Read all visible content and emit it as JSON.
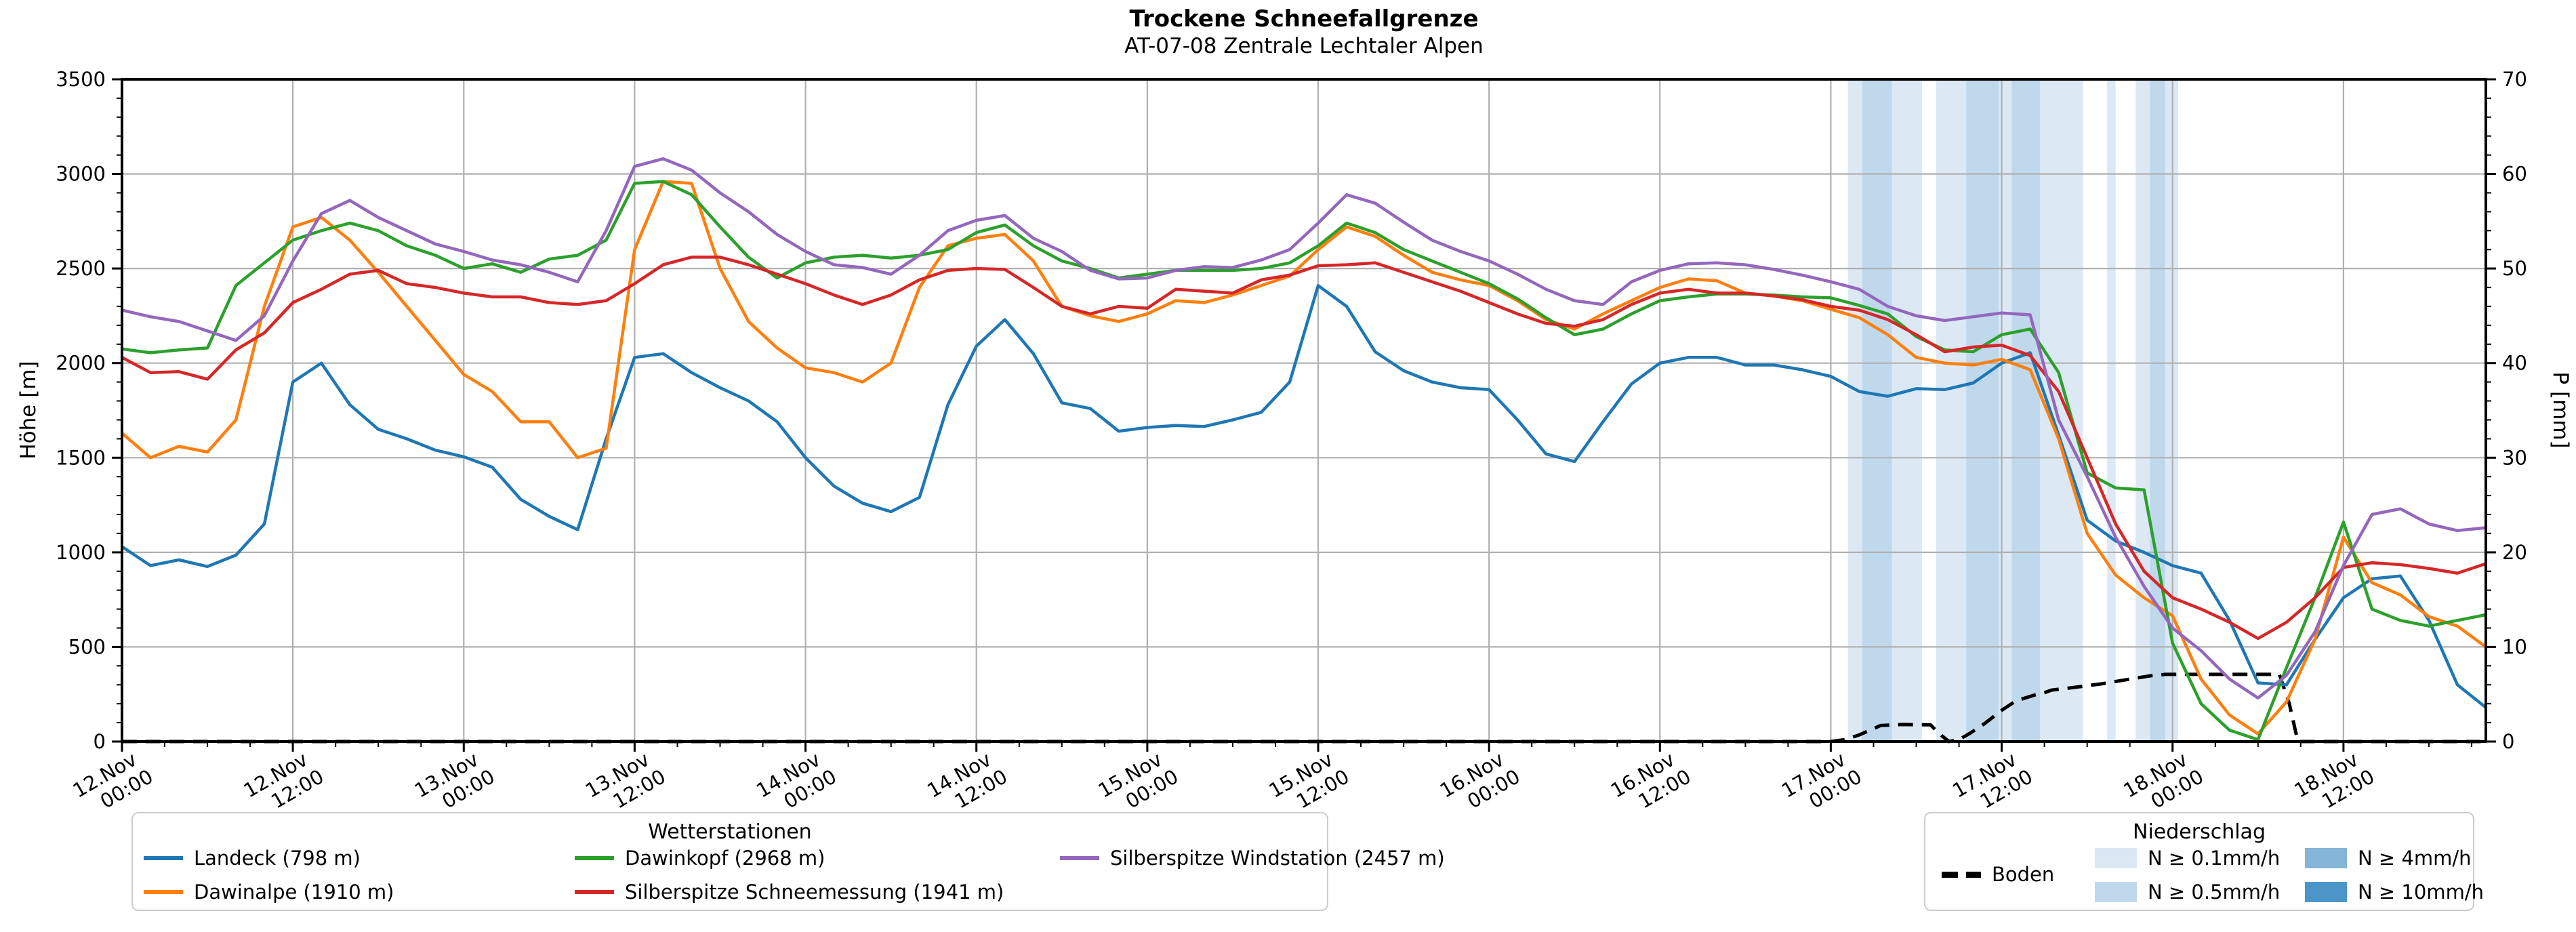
{
  "title": "Trockene Schneefallgrenze",
  "subtitle": "AT-07-08 Zentrale Lechtaler Alpen",
  "colors": {
    "landeck": "#1f77b4",
    "dawinalpe": "#ff7f0e",
    "dawinkopf": "#2ca02c",
    "silberspitze_schneemessung": "#d62728",
    "silberspitze_windstation": "#9467bd",
    "boden": "#000000",
    "grid": "#b0b0b0",
    "spine": "#000000"
  },
  "chart_data": {
    "type": "line",
    "title": "Trockene Schneefallgrenze",
    "subtitle": "AT-07-08 Zentrale Lechtaler Alpen",
    "ylabel_left": "Höhe [m]",
    "ylabel_right": "P [mm]",
    "y_left": {
      "min": 0,
      "max": 3500,
      "ticks": [
        0,
        500,
        1000,
        1500,
        2000,
        2500,
        3000,
        3500
      ],
      "gridlines": [
        500,
        1000,
        1500,
        2000,
        2500,
        3000
      ],
      "minor_step": 100
    },
    "y_right": {
      "min": 0,
      "max": 70,
      "ticks": [
        0,
        10,
        20,
        30,
        40,
        50,
        60,
        70
      ],
      "minor_step": 2
    },
    "x_hours_total": 166,
    "x_tick_step_hours": 12,
    "x_minor_step_hours": 3,
    "x_ticks": [
      {
        "date": "12.Nov",
        "time": "00:00"
      },
      {
        "date": "12.Nov",
        "time": "12:00"
      },
      {
        "date": "13.Nov",
        "time": "00:00"
      },
      {
        "date": "13.Nov",
        "time": "12:00"
      },
      {
        "date": "14.Nov",
        "time": "00:00"
      },
      {
        "date": "14.Nov",
        "time": "12:00"
      },
      {
        "date": "15.Nov",
        "time": "00:00"
      },
      {
        "date": "15.Nov",
        "time": "12:00"
      },
      {
        "date": "16.Nov",
        "time": "00:00"
      },
      {
        "date": "16.Nov",
        "time": "12:00"
      },
      {
        "date": "17.Nov",
        "time": "00:00"
      },
      {
        "date": "17.Nov",
        "time": "12:00"
      },
      {
        "date": "18.Nov",
        "time": "00:00"
      },
      {
        "date": "18.Nov",
        "time": "12:00"
      }
    ],
    "sample_step_hours": 2,
    "series": [
      {
        "name": "Landeck (798 m)",
        "color": "#1f77b4",
        "values": [
          1030,
          930,
          960,
          925,
          985,
          1150,
          1900,
          2000,
          1780,
          1650,
          1600,
          1540,
          1505,
          1450,
          1280,
          1190,
          1120,
          1600,
          2030,
          2050,
          1950,
          1870,
          1800,
          1690,
          1500,
          1350,
          1260,
          1215,
          1290,
          1780,
          2090,
          2230,
          2050,
          1790,
          1760,
          1640,
          1660,
          1670,
          1665,
          1700,
          1740,
          1900,
          2410,
          2300,
          2060,
          1960,
          1900,
          1870,
          1860,
          1700,
          1520,
          1480,
          1690,
          1890,
          2000,
          2030,
          2030,
          1990,
          1990,
          1965,
          1930,
          1850,
          1825,
          1865,
          1860,
          1895,
          2000,
          2055,
          1620,
          1170,
          1060,
          1000,
          930,
          890,
          640,
          310,
          300,
          540,
          760,
          860,
          875,
          640,
          300,
          180
        ]
      },
      {
        "name": "Dawinalpe (1910 m)",
        "color": "#ff7f0e",
        "values": [
          1630,
          1500,
          1560,
          1530,
          1700,
          2300,
          2720,
          2770,
          2650,
          2480,
          2300,
          2120,
          1940,
          1850,
          1690,
          1690,
          1500,
          1550,
          2600,
          2960,
          2950,
          2500,
          2220,
          2080,
          1975,
          1950,
          1900,
          2000,
          2400,
          2620,
          2660,
          2680,
          2540,
          2300,
          2250,
          2220,
          2260,
          2330,
          2320,
          2360,
          2410,
          2460,
          2600,
          2720,
          2670,
          2570,
          2480,
          2440,
          2410,
          2330,
          2230,
          2180,
          2260,
          2330,
          2400,
          2445,
          2435,
          2370,
          2355,
          2330,
          2285,
          2240,
          2150,
          2030,
          2000,
          1990,
          2020,
          1965,
          1600,
          1100,
          880,
          760,
          665,
          330,
          140,
          40,
          210,
          540,
          1080,
          840,
          775,
          660,
          610,
          500
        ]
      },
      {
        "name": "Dawinkopf (2968 m)",
        "color": "#2ca02c",
        "values": [
          2075,
          2055,
          2070,
          2080,
          2410,
          2530,
          2650,
          2700,
          2740,
          2700,
          2620,
          2570,
          2500,
          2525,
          2480,
          2550,
          2570,
          2650,
          2950,
          2960,
          2890,
          2720,
          2560,
          2450,
          2530,
          2560,
          2570,
          2555,
          2570,
          2600,
          2690,
          2730,
          2620,
          2540,
          2500,
          2450,
          2470,
          2490,
          2490,
          2490,
          2500,
          2530,
          2620,
          2740,
          2690,
          2600,
          2540,
          2480,
          2420,
          2340,
          2240,
          2150,
          2180,
          2260,
          2330,
          2350,
          2365,
          2365,
          2360,
          2350,
          2345,
          2305,
          2260,
          2140,
          2070,
          2060,
          2150,
          2180,
          1950,
          1420,
          1340,
          1330,
          520,
          200,
          60,
          10,
          390,
          760,
          1160,
          700,
          640,
          610,
          640,
          670
        ]
      },
      {
        "name": "Silberspitze Schneemessung (1941 m)",
        "color": "#d62728",
        "values": [
          2030,
          1950,
          1955,
          1915,
          2070,
          2160,
          2320,
          2390,
          2470,
          2490,
          2420,
          2400,
          2370,
          2350,
          2350,
          2320,
          2310,
          2330,
          2420,
          2520,
          2560,
          2560,
          2520,
          2470,
          2420,
          2360,
          2310,
          2360,
          2440,
          2490,
          2500,
          2495,
          2400,
          2300,
          2260,
          2300,
          2290,
          2390,
          2380,
          2370,
          2440,
          2465,
          2515,
          2520,
          2530,
          2480,
          2430,
          2380,
          2320,
          2260,
          2210,
          2195,
          2230,
          2310,
          2370,
          2390,
          2370,
          2370,
          2355,
          2335,
          2300,
          2280,
          2230,
          2150,
          2060,
          2085,
          2095,
          2040,
          1850,
          1500,
          1150,
          900,
          760,
          700,
          630,
          545,
          630,
          760,
          920,
          945,
          935,
          915,
          890,
          940
        ]
      },
      {
        "name": "Silberspitze Windstation (2457 m)",
        "color": "#9467bd",
        "values": [
          2280,
          2245,
          2220,
          2170,
          2120,
          2250,
          2540,
          2790,
          2860,
          2770,
          2700,
          2630,
          2590,
          2545,
          2520,
          2480,
          2430,
          2700,
          3040,
          3080,
          3020,
          2900,
          2800,
          2680,
          2590,
          2520,
          2505,
          2470,
          2570,
          2700,
          2755,
          2780,
          2660,
          2590,
          2490,
          2445,
          2450,
          2490,
          2510,
          2505,
          2545,
          2600,
          2740,
          2890,
          2845,
          2745,
          2650,
          2590,
          2540,
          2470,
          2390,
          2330,
          2310,
          2430,
          2490,
          2525,
          2530,
          2520,
          2495,
          2465,
          2430,
          2390,
          2300,
          2250,
          2225,
          2245,
          2265,
          2255,
          1700,
          1400,
          1080,
          820,
          600,
          480,
          330,
          230,
          350,
          580,
          930,
          1200,
          1230,
          1150,
          1115,
          1130
        ]
      }
    ],
    "boden": {
      "name": "Boden",
      "dash": [
        22,
        13
      ],
      "points": [
        [
          0,
          0
        ],
        [
          120,
          0
        ],
        [
          121,
          10
        ],
        [
          122,
          35
        ],
        [
          123.5,
          85
        ],
        [
          125,
          90
        ],
        [
          127,
          88
        ],
        [
          127.8,
          30
        ],
        [
          128.3,
          0
        ],
        [
          129,
          10
        ],
        [
          129.8,
          45
        ],
        [
          130.8,
          95
        ],
        [
          132,
          165
        ],
        [
          133,
          215
        ],
        [
          134.5,
          250
        ],
        [
          135,
          258
        ],
        [
          135.5,
          272
        ],
        [
          137,
          285
        ],
        [
          139,
          305
        ],
        [
          141,
          330
        ],
        [
          142.5,
          348
        ],
        [
          143.5,
          355
        ],
        [
          151.5,
          355
        ],
        [
          152.2,
          200
        ],
        [
          152.8,
          0
        ],
        [
          166,
          0
        ]
      ]
    },
    "precip_bands": [
      {
        "from": 121.2,
        "to": 122.2,
        "level": "0.1"
      },
      {
        "from": 122.2,
        "to": 124.3,
        "level": "0.5"
      },
      {
        "from": 124.3,
        "to": 126.4,
        "level": "0.1"
      },
      {
        "from": 127.4,
        "to": 129.5,
        "level": "0.1"
      },
      {
        "from": 129.5,
        "to": 131.8,
        "level": "0.5"
      },
      {
        "from": 131.8,
        "to": 132.7,
        "level": "0.1"
      },
      {
        "from": 132.7,
        "to": 134.7,
        "level": "0.5"
      },
      {
        "from": 134.7,
        "to": 137.7,
        "level": "0.1"
      },
      {
        "from": 139.4,
        "to": 140.0,
        "level": "0.1"
      },
      {
        "from": 141.4,
        "to": 142.4,
        "level": "0.1"
      },
      {
        "from": 142.4,
        "to": 143.5,
        "level": "0.5"
      },
      {
        "from": 143.5,
        "to": 144.4,
        "level": "0.1"
      }
    ],
    "precip_level_colors": {
      "0.1": "#dce9f5",
      "0.5": "#c0d8ec",
      "4": "#85b5d9",
      "10": "#4b95c9"
    }
  },
  "legend_stations": {
    "title": "Wetterstationen",
    "items": [
      {
        "label": "Landeck (798 m)",
        "color": "#1f77b4"
      },
      {
        "label": "Dawinalpe (1910 m)",
        "color": "#ff7f0e"
      },
      {
        "label": "Dawinkopf (2968 m)",
        "color": "#2ca02c"
      },
      {
        "label": "Silberspitze Schneemessung (1941 m)",
        "color": "#d62728"
      },
      {
        "label": "Silberspitze Windstation (2457 m)",
        "color": "#9467bd"
      }
    ]
  },
  "legend_precip": {
    "title": "Niederschlag",
    "boden_label": "Boden",
    "items": [
      {
        "label": "N ≥ 0.1mm/h",
        "color": "#dce9f5"
      },
      {
        "label": "N ≥ 0.5mm/h",
        "color": "#c0d8ec"
      },
      {
        "label": "N ≥ 4mm/h",
        "color": "#85b5d9"
      },
      {
        "label": "N ≥ 10mm/h",
        "color": "#4b95c9"
      }
    ]
  }
}
